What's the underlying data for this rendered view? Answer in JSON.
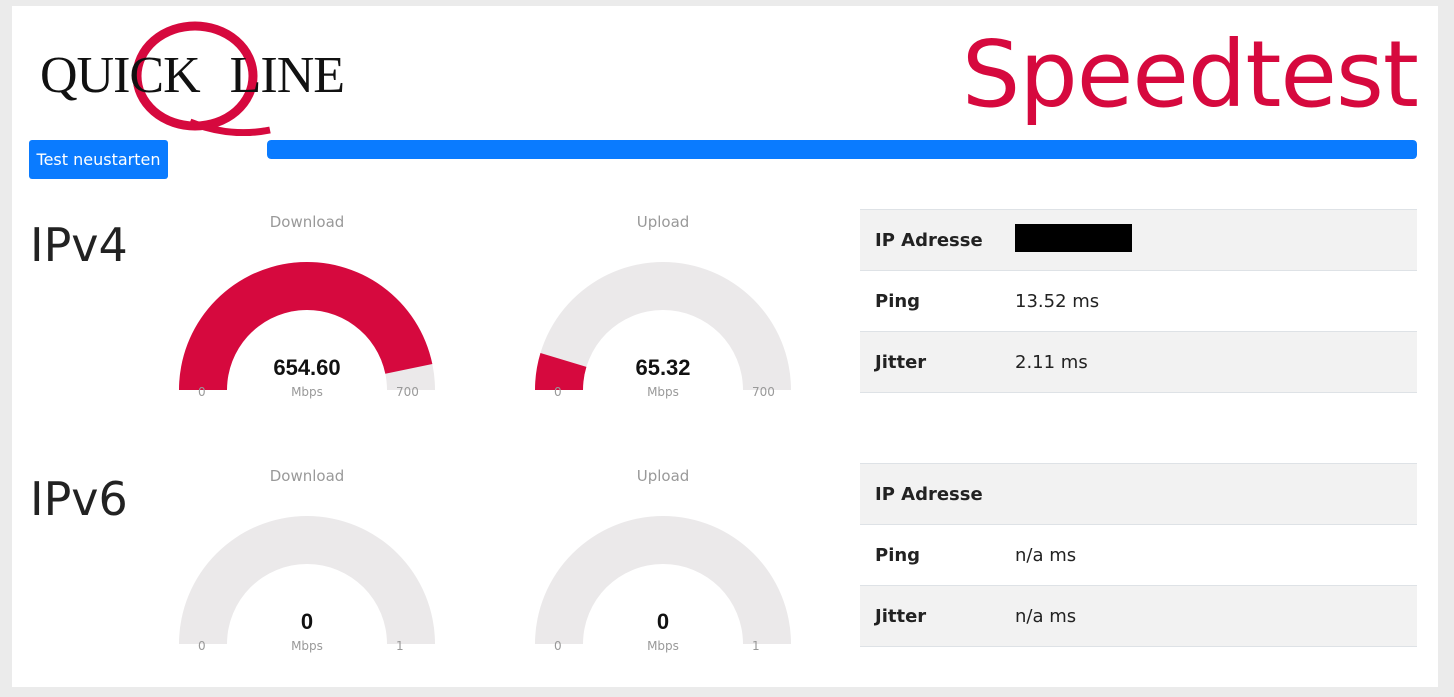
{
  "header": {
    "logo_text_left": "QUICK",
    "logo_text_right": "LINE",
    "title": "Speedtest",
    "brand_color": "#d6093e"
  },
  "controls": {
    "restart_label": "Test neustarten",
    "progress_fraction": 1.0,
    "accent_color": "#0a7bff"
  },
  "ipv4": {
    "label": "IPv4",
    "download": {
      "title": "Download",
      "value": "654.60",
      "unit": "Mbps",
      "min": "0",
      "max": "700",
      "fraction": 0.935
    },
    "upload": {
      "title": "Upload",
      "value": "65.32",
      "unit": "Mbps",
      "min": "0",
      "max": "700",
      "fraction": 0.0933
    },
    "info": {
      "ip_label": "IP Adresse",
      "ping_label": "Ping",
      "ping_value": "13.52 ms",
      "jitter_label": "Jitter",
      "jitter_value": "2.11 ms"
    }
  },
  "ipv6": {
    "label": "IPv6",
    "download": {
      "title": "Download",
      "value": "0",
      "unit": "Mbps",
      "min": "0",
      "max": "1",
      "fraction": 0
    },
    "upload": {
      "title": "Upload",
      "value": "0",
      "unit": "Mbps",
      "min": "0",
      "max": "1",
      "fraction": 0
    },
    "info": {
      "ip_label": "IP Adresse",
      "ping_label": "Ping",
      "ping_value": "n/a ms",
      "jitter_label": "Jitter",
      "jitter_value": "n/a ms"
    }
  }
}
